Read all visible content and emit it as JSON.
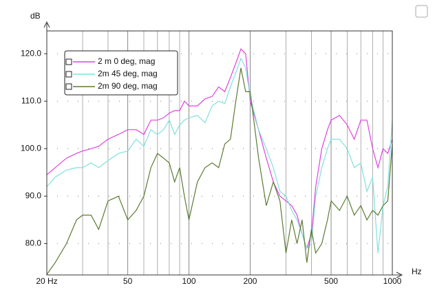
{
  "chart_data": {
    "type": "line",
    "xscale": "log",
    "ylabel": "dB",
    "xlabel": "Hz",
    "grid": true,
    "x": [
      20,
      22,
      25,
      28,
      30,
      33,
      36,
      40,
      45,
      50,
      55,
      60,
      65,
      70,
      75,
      80,
      85,
      90,
      95,
      100,
      110,
      120,
      130,
      140,
      150,
      160,
      170,
      180,
      190,
      200,
      220,
      240,
      260,
      280,
      300,
      320,
      340,
      360,
      380,
      400,
      420,
      450,
      480,
      500,
      550,
      600,
      650,
      700,
      750,
      800,
      850,
      900,
      950,
      1000
    ],
    "series": [
      {
        "name": "2 m 0 deg, mag",
        "color": "#e040e0",
        "values": [
          94.5,
          96,
          98,
          99,
          99.5,
          100,
          100.5,
          102,
          103,
          104,
          104,
          103,
          106,
          106,
          106.5,
          107.5,
          108,
          108,
          110,
          109,
          109,
          110.5,
          111,
          113,
          112,
          115,
          118,
          121,
          120,
          110,
          104,
          98,
          93,
          90,
          89,
          88,
          86,
          82,
          79,
          82,
          92,
          100,
          104,
          106,
          107,
          105,
          102,
          106,
          106,
          100,
          96,
          100,
          99,
          102
        ]
      },
      {
        "name": "2m 45 deg, mag",
        "color": "#7fe0dc",
        "values": [
          92,
          94,
          95.5,
          96,
          96,
          97,
          96,
          97.5,
          99,
          99.5,
          102,
          100.5,
          104,
          103,
          104,
          106,
          103,
          105,
          106,
          106.5,
          107,
          105.5,
          109,
          110,
          109.5,
          113,
          116,
          119,
          117,
          111,
          104,
          100,
          96,
          91,
          90,
          87,
          85,
          82,
          79,
          80,
          90,
          96,
          100,
          102,
          102,
          100,
          96,
          97,
          91,
          94,
          78,
          88,
          92,
          106
        ]
      },
      {
        "name": "2m 90 deg, mag",
        "color": "#5a7a30",
        "values": [
          73.5,
          76,
          80,
          85,
          86,
          86,
          83,
          89,
          90,
          85,
          87,
          90,
          96,
          99,
          98,
          97,
          93,
          96,
          90,
          85,
          93,
          96,
          97,
          96,
          101,
          102,
          110,
          117,
          112,
          112,
          98,
          88,
          93,
          89,
          78,
          85,
          80,
          85,
          76,
          83,
          78,
          80,
          85,
          89,
          87,
          90,
          86,
          88,
          85,
          87,
          86,
          88,
          89,
          101
        ]
      }
    ],
    "xlim": [
      20,
      1000
    ],
    "xticks": [
      {
        "value": 20,
        "label": "20 Hz"
      },
      50,
      100,
      200,
      500,
      1000
    ],
    "xminor": [
      30,
      40,
      60,
      70,
      80,
      90,
      300,
      400,
      600,
      700,
      800,
      900
    ],
    "ylim": [
      73.4,
      124.8
    ],
    "yticks": [
      {
        "value": 80,
        "label": "80.0"
      },
      {
        "value": 90,
        "label": "90.0"
      },
      {
        "value": 100,
        "label": "100.0"
      },
      {
        "value": 110,
        "label": "110.0"
      },
      {
        "value": 120,
        "label": "120.0"
      }
    ]
  }
}
